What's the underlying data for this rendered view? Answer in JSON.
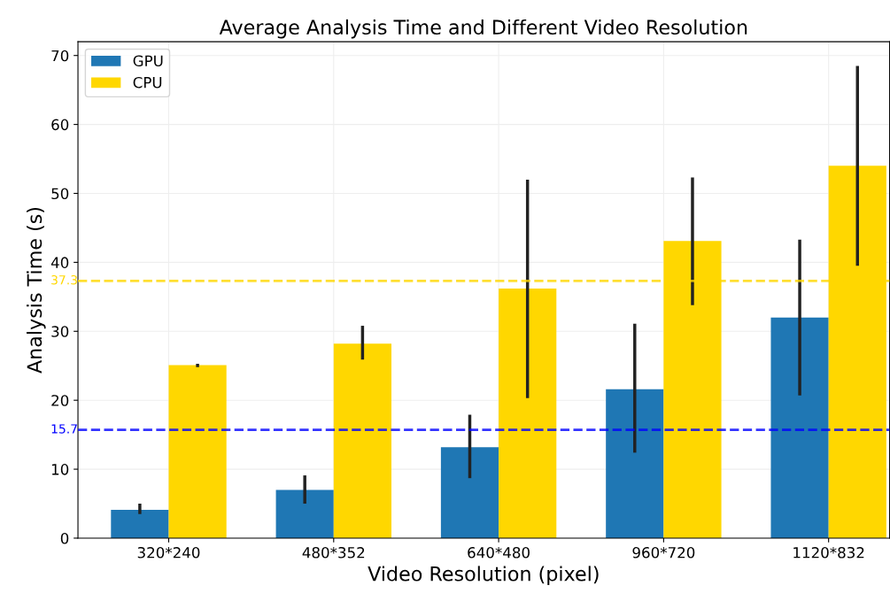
{
  "chart_data": {
    "type": "bar",
    "title": "Average Analysis Time and Different Video Resolution",
    "xlabel": "Video Resolution (pixel)",
    "ylabel": "Analysis Time (s)",
    "categories": [
      "320*240",
      "480*352",
      "640*480",
      "960*720",
      "1120*832"
    ],
    "series": [
      {
        "name": "GPU",
        "color": "#1f77b4",
        "values": [
          4.1,
          7.0,
          13.2,
          21.6,
          32.0
        ],
        "errors": [
          [
            3.5,
            5.0
          ],
          [
            5.0,
            9.1
          ],
          [
            8.7,
            17.9
          ],
          [
            12.4,
            31.1
          ],
          [
            20.7,
            43.3
          ]
        ]
      },
      {
        "name": "CPU",
        "color": "#ffd700",
        "values": [
          25.1,
          28.2,
          36.2,
          43.1,
          54.0
        ],
        "errors": [
          [
            24.8,
            25.3
          ],
          [
            25.9,
            30.8
          ],
          [
            20.3,
            52.0
          ],
          [
            33.8,
            52.3
          ],
          [
            39.5,
            68.5
          ]
        ]
      }
    ],
    "ref_lines": [
      {
        "axis": "y",
        "value": 15.7,
        "label": "15.7",
        "color": "#0000ff",
        "line_style": "dashed"
      },
      {
        "axis": "y",
        "value": 37.3,
        "label": "37.3",
        "color": "#ffd700",
        "line_style": "dashed"
      }
    ],
    "ylim": [
      0,
      72
    ],
    "yticks": [
      0,
      10,
      20,
      30,
      40,
      50,
      60,
      70
    ],
    "grid": true,
    "legend": "top left"
  }
}
